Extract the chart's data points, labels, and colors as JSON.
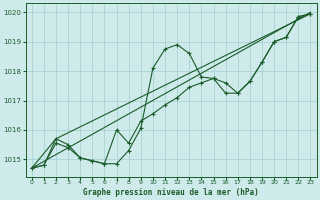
{
  "title": "Graphe pression niveau de la mer (hPa)",
  "bg_color": "#ceeaea",
  "grid_color": "#aad4d4",
  "line_color": "#1a5c2a",
  "xlim": [
    -0.5,
    23.5
  ],
  "ylim": [
    1014.4,
    1020.3
  ],
  "yticks": [
    1015,
    1016,
    1017,
    1018,
    1019,
    1020
  ],
  "xticks": [
    0,
    1,
    2,
    3,
    4,
    5,
    6,
    7,
    8,
    9,
    10,
    11,
    12,
    13,
    14,
    15,
    16,
    17,
    18,
    19,
    20,
    21,
    22,
    23
  ],
  "series_wave": {
    "x": [
      0,
      1,
      2,
      3,
      4,
      5,
      6,
      7,
      8,
      9,
      10,
      11,
      12,
      13,
      14,
      15,
      16,
      17,
      18,
      19,
      20,
      21,
      22,
      23
    ],
    "y": [
      1014.7,
      1014.8,
      1015.7,
      1015.5,
      1015.05,
      1014.95,
      1014.85,
      1014.85,
      1015.3,
      1016.05,
      1018.1,
      1018.75,
      1018.9,
      1018.6,
      1017.8,
      1017.75,
      1017.6,
      1017.25,
      1017.65,
      1018.3,
      1019.0,
      1019.15,
      1019.85,
      1019.95
    ]
  },
  "series_smooth": {
    "x": [
      0,
      1,
      2,
      3,
      4,
      5,
      6,
      7,
      8,
      9,
      10,
      11,
      12,
      13,
      14,
      15,
      16,
      17,
      18,
      19,
      20,
      21,
      22,
      23
    ],
    "y": [
      1014.7,
      1014.8,
      1015.55,
      1015.4,
      1015.05,
      1014.95,
      1014.85,
      1016.0,
      1015.55,
      1016.3,
      1016.55,
      1016.85,
      1017.1,
      1017.45,
      1017.6,
      1017.75,
      1017.25,
      1017.25,
      1017.65,
      1018.3,
      1019.0,
      1019.15,
      1019.85,
      1019.95
    ]
  },
  "series_line1": {
    "x": [
      0,
      23
    ],
    "y": [
      1014.7,
      1020.0
    ]
  },
  "series_line2": {
    "x": [
      0,
      2,
      23
    ],
    "y": [
      1014.7,
      1015.7,
      1019.95
    ]
  }
}
